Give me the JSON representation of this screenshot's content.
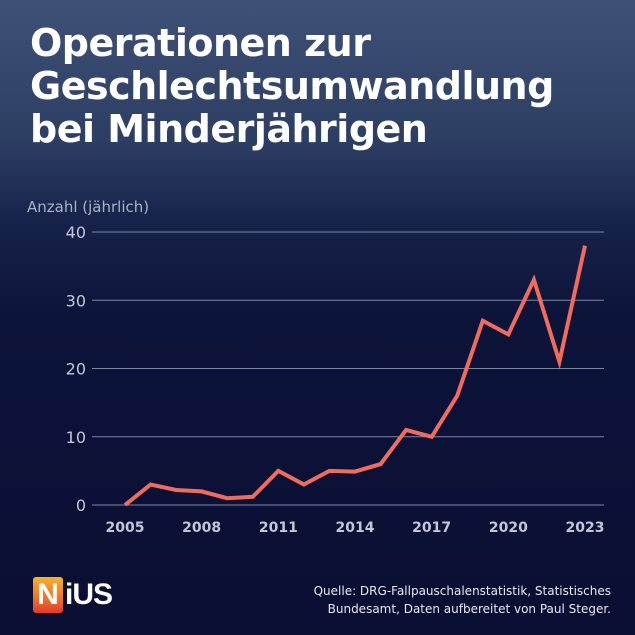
{
  "header": {
    "title_lines": [
      "Operationen zur",
      "Geschlechtsumwandlung",
      "bei Minderjährigen"
    ]
  },
  "chart_data": {
    "type": "line",
    "title": "Operationen zur Geschlechtsumwandlung bei Minderjährigen",
    "xlabel": "",
    "ylabel": "Anzahl (jährlich)",
    "x": [
      2005,
      2006,
      2007,
      2008,
      2009,
      2010,
      2011,
      2012,
      2013,
      2014,
      2015,
      2016,
      2017,
      2018,
      2019,
      2020,
      2021,
      2022,
      2023
    ],
    "series": [
      {
        "name": "Operationen",
        "values": [
          0,
          3,
          2.2,
          2,
          1,
          1.2,
          5,
          3,
          5,
          4.9,
          6,
          11,
          10,
          16,
          27,
          25,
          33,
          21,
          38
        ],
        "color": "#f26b5b"
      }
    ],
    "ylim": [
      0,
      40
    ],
    "xlim": [
      2005,
      2023
    ],
    "yticks": [
      "0",
      "10",
      "20",
      "30",
      "40"
    ],
    "ytick_values": [
      0,
      10,
      20,
      30,
      40
    ],
    "xticks": [
      "2005",
      "2008",
      "2011",
      "2014",
      "2017",
      "2020",
      "2023"
    ],
    "xtick_values": [
      2005,
      2008,
      2011,
      2014,
      2017,
      2020,
      2023
    ],
    "grid": true,
    "legend": "none"
  },
  "footer": {
    "logo_first": "N",
    "logo_rest": "iUS",
    "source_line1": "Quelle: DRG-Fallpauschalenstatistik, Statistisches",
    "source_line2": "Bundesamt, Daten aufbereitet von Paul Steger."
  }
}
